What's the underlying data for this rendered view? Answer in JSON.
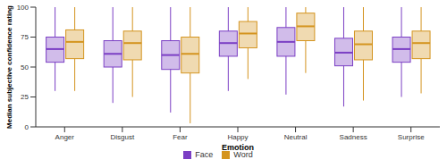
{
  "chart_data": {
    "type": "box",
    "x_label": "Emotion",
    "y_label": "Median subjective confidence rating",
    "categories": [
      "Anger",
      "Disgust",
      "Fear",
      "Happy",
      "Neutral",
      "Sadness",
      "Surprise"
    ],
    "ylim": [
      0,
      100
    ],
    "yticks": [
      0,
      25,
      50,
      75,
      100
    ],
    "legend": "bottom",
    "series": [
      {
        "name": "Face",
        "color": "#7b3fc4",
        "min": [
          30,
          20,
          12,
          30,
          27,
          17,
          25
        ],
        "q1": [
          54,
          50,
          48,
          59,
          59,
          51,
          54
        ],
        "median": [
          65,
          61,
          60,
          70,
          71,
          62,
          65
        ],
        "q3": [
          75,
          72,
          72,
          80,
          83,
          74,
          75
        ],
        "max": [
          100,
          100,
          100,
          100,
          100,
          100,
          100
        ]
      },
      {
        "name": "Word",
        "color": "#d4941f",
        "min": [
          30,
          25,
          3,
          40,
          45,
          22,
          28
        ],
        "q1": [
          57,
          56,
          45,
          66,
          72,
          56,
          57
        ],
        "median": [
          71,
          70,
          61,
          78,
          84,
          69,
          70
        ],
        "q3": [
          81,
          80,
          75,
          88,
          95,
          80,
          80
        ],
        "max": [
          100,
          100,
          100,
          100,
          100,
          100,
          100
        ]
      }
    ]
  }
}
